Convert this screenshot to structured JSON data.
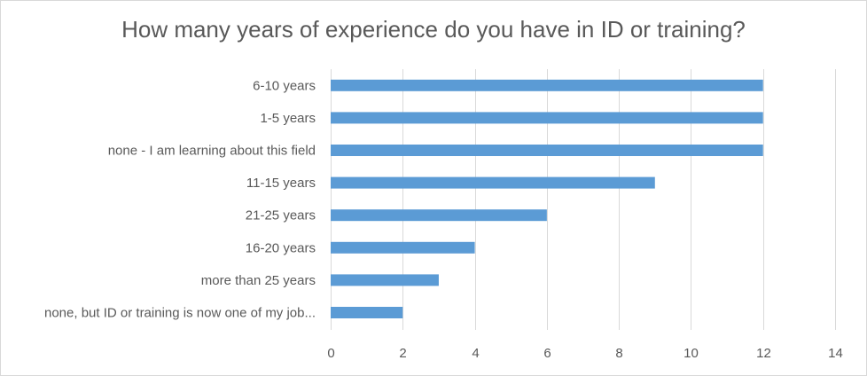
{
  "chart_data": {
    "type": "bar",
    "orientation": "horizontal",
    "title": "How many years of experience do you have in ID or training?",
    "categories": [
      "6-10 years",
      "1-5 years",
      "none - I am learning about this field",
      "11-15 years",
      "21-25 years",
      "16-20 years",
      "more than 25 years",
      "none, but ID or training is now one of my job..."
    ],
    "values": [
      12,
      12,
      12,
      9,
      6,
      4,
      3,
      2
    ],
    "xticks": [
      0,
      2,
      4,
      6,
      8,
      10,
      12,
      14
    ],
    "xlim": [
      0,
      14
    ],
    "xlabel": "",
    "ylabel": "",
    "grid": true,
    "legend": false,
    "bar_color": "#5b9bd5",
    "grid_color": "#d9d9d9"
  }
}
